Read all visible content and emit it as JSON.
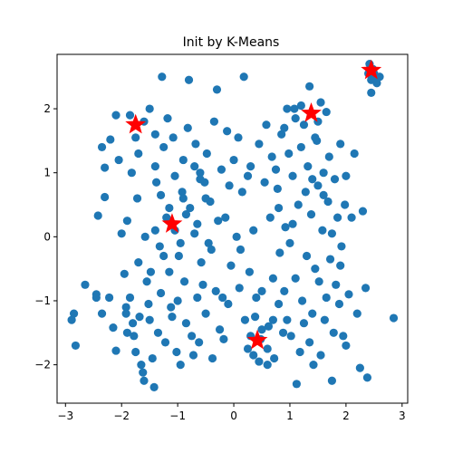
{
  "chart_data": {
    "type": "scatter",
    "title": "Init by K-Means",
    "xlabel": "",
    "ylabel": "",
    "xlim": [
      -3.15,
      3.1
    ],
    "ylim": [
      -2.6,
      2.85
    ],
    "xticks": [
      -3,
      -2,
      -1,
      0,
      1,
      2,
      3
    ],
    "yticks": [
      -2,
      -1,
      0,
      1,
      2
    ],
    "grid": false,
    "legend": "none",
    "point_color": "#1f77b4",
    "center_color": "#ff0000",
    "series": [
      {
        "marker": "circle",
        "color": "#1f77b4",
        "points": [
          [
            -2.89,
            -1.3
          ],
          [
            -2.85,
            -1.2
          ],
          [
            -2.82,
            -1.7
          ],
          [
            -2.65,
            -0.75
          ],
          [
            -2.45,
            -0.9
          ],
          [
            -2.45,
            -0.95
          ],
          [
            -2.42,
            0.33
          ],
          [
            -2.3,
            0.62
          ],
          [
            -2.3,
            1.08
          ],
          [
            -2.35,
            1.4
          ],
          [
            -2.35,
            -1.2
          ],
          [
            -2.22,
            -0.95
          ],
          [
            -2.2,
            1.52
          ],
          [
            -2.15,
            -1.42
          ],
          [
            -2.1,
            -1.78
          ],
          [
            -2.1,
            1.9
          ],
          [
            -2.05,
            1.2
          ],
          [
            -2.0,
            0.05
          ],
          [
            -1.95,
            -0.58
          ],
          [
            -1.92,
            -1.1
          ],
          [
            -1.92,
            -1.2
          ],
          [
            -1.9,
            0.25
          ],
          [
            -1.9,
            -1.5
          ],
          [
            -1.85,
            -0.95
          ],
          [
            -1.82,
            1.0
          ],
          [
            -1.8,
            -1.35
          ],
          [
            -1.78,
            -1.55
          ],
          [
            -1.75,
            -1.8
          ],
          [
            -1.72,
            0.6
          ],
          [
            -1.7,
            -0.4
          ],
          [
            -1.68,
            -1.25
          ],
          [
            -1.65,
            -2.0
          ],
          [
            -1.62,
            -2.12
          ],
          [
            -1.6,
            -2.25
          ],
          [
            -1.58,
            0.0
          ],
          [
            -1.55,
            -0.7
          ],
          [
            -1.52,
            -1.05
          ],
          [
            -1.5,
            -1.3
          ],
          [
            -1.48,
            -0.55
          ],
          [
            -1.45,
            -1.9
          ],
          [
            -1.42,
            -2.35
          ],
          [
            -1.4,
            1.1
          ],
          [
            -1.38,
            0.85
          ],
          [
            -1.35,
            -1.5
          ],
          [
            -1.32,
            -0.15
          ],
          [
            -1.3,
            -0.88
          ],
          [
            -1.28,
            2.5
          ],
          [
            -1.25,
            1.4
          ],
          [
            -1.22,
            -1.65
          ],
          [
            -1.2,
            0.3
          ],
          [
            -1.18,
            1.85
          ],
          [
            -1.15,
            -0.55
          ],
          [
            -1.12,
            -1.1
          ],
          [
            -1.1,
            -1.25
          ],
          [
            -1.08,
            1.55
          ],
          [
            -1.05,
            0.95
          ],
          [
            -1.02,
            -1.8
          ],
          [
            -1.0,
            -1.0
          ],
          [
            -0.98,
            -0.3
          ],
          [
            -0.95,
            -2.0
          ],
          [
            -0.92,
            0.7
          ],
          [
            -0.9,
            1.2
          ],
          [
            -0.88,
            -0.7
          ],
          [
            -0.85,
            -1.35
          ],
          [
            -0.82,
            1.7
          ],
          [
            -0.8,
            2.45
          ],
          [
            -0.78,
            0.45
          ],
          [
            -0.75,
            -1.55
          ],
          [
            -0.72,
            -1.85
          ],
          [
            -0.7,
            0.05
          ],
          [
            -0.68,
            1.45
          ],
          [
            -0.65,
            -0.95
          ],
          [
            -0.62,
            -1.65
          ],
          [
            -0.6,
            1.0
          ],
          [
            -0.58,
            -0.4
          ],
          [
            -0.55,
            -0.75
          ],
          [
            -0.52,
            0.85
          ],
          [
            -0.5,
            -1.2
          ],
          [
            -0.48,
            1.3
          ],
          [
            -0.45,
            -0.1
          ],
          [
            -0.42,
            0.55
          ],
          [
            -0.4,
            -0.2
          ],
          [
            -0.38,
            -1.9
          ],
          [
            -0.35,
            1.8
          ],
          [
            -0.32,
            -0.85
          ],
          [
            -0.3,
            2.3
          ],
          [
            -0.28,
            0.25
          ],
          [
            -0.25,
            -1.45
          ],
          [
            -0.22,
            1.05
          ],
          [
            -0.2,
            -0.95
          ],
          [
            -0.18,
            -1.6
          ],
          [
            -0.15,
            0.3
          ],
          [
            -0.12,
            1.65
          ],
          [
            -0.1,
            -1.05
          ],
          [
            -0.08,
            0.8
          ],
          [
            -0.05,
            -0.45
          ],
          [
            0.0,
            1.2
          ],
          [
            0.05,
            0.0
          ],
          [
            0.08,
            1.55
          ],
          [
            0.1,
            -0.8
          ],
          [
            0.12,
            -0.2
          ],
          [
            0.15,
            0.7
          ],
          [
            0.18,
            2.5
          ],
          [
            0.2,
            -1.3
          ],
          [
            0.25,
            0.95
          ],
          [
            0.28,
            -0.55
          ],
          [
            0.3,
            1.1
          ],
          [
            0.35,
            0.1
          ],
          [
            0.38,
            -1.25
          ],
          [
            0.4,
            -0.95
          ],
          [
            0.45,
            1.45
          ],
          [
            0.48,
            -1.6
          ],
          [
            0.5,
            -0.85
          ],
          [
            0.55,
            0.85
          ],
          [
            0.58,
            1.75
          ],
          [
            0.6,
            -1.75
          ],
          [
            0.62,
            -1.4
          ],
          [
            0.65,
            0.3
          ],
          [
            0.68,
            1.25
          ],
          [
            0.7,
            -0.65
          ],
          [
            0.72,
            -1.9
          ],
          [
            0.75,
            1.05
          ],
          [
            0.78,
            0.75
          ],
          [
            0.8,
            -1.05
          ],
          [
            0.82,
            -0.25
          ],
          [
            0.85,
            1.6
          ],
          [
            0.88,
            -1.5
          ],
          [
            0.9,
            -0.85
          ],
          [
            0.92,
            0.15
          ],
          [
            0.95,
            -1.3
          ],
          [
            0.98,
            1.3
          ],
          [
            1.0,
            -0.1
          ],
          [
            1.02,
            -1.55
          ],
          [
            1.05,
            0.95
          ],
          [
            1.08,
            2.0
          ],
          [
            1.1,
            -0.65
          ],
          [
            1.12,
            -2.3
          ],
          [
            1.15,
            0.5
          ],
          [
            1.18,
            -1.8
          ],
          [
            1.2,
            1.4
          ],
          [
            1.22,
            -1.0
          ],
          [
            1.25,
            -1.35
          ],
          [
            1.28,
            0.7
          ],
          [
            1.3,
            -0.3
          ],
          [
            1.32,
            1.1
          ],
          [
            1.35,
            -1.65
          ],
          [
            1.38,
            0.35
          ],
          [
            1.4,
            -1.2
          ],
          [
            1.42,
            -2.0
          ],
          [
            1.45,
            -0.5
          ],
          [
            1.48,
            1.5
          ],
          [
            1.5,
            0.8
          ],
          [
            1.52,
            -0.7
          ],
          [
            1.55,
            -1.85
          ],
          [
            1.58,
            0.1
          ],
          [
            1.6,
            1.0
          ],
          [
            1.62,
            -1.3
          ],
          [
            1.65,
            -0.95
          ],
          [
            1.68,
            0.55
          ],
          [
            1.7,
            1.25
          ],
          [
            1.72,
            -0.35
          ],
          [
            1.75,
            -2.25
          ],
          [
            1.78,
            -1.5
          ],
          [
            1.8,
            0.9
          ],
          [
            1.82,
            -0.75
          ],
          [
            1.85,
            0.3
          ],
          [
            1.88,
            -1.05
          ],
          [
            1.9,
            1.45
          ],
          [
            1.92,
            -0.15
          ],
          [
            1.95,
            -1.55
          ],
          [
            1.98,
            0.5
          ],
          [
            2.0,
            -1.7
          ],
          [
            2.05,
            -0.9
          ],
          [
            2.1,
            0.3
          ],
          [
            2.15,
            1.3
          ],
          [
            2.2,
            -1.2
          ],
          [
            2.25,
            -2.05
          ],
          [
            2.3,
            0.4
          ],
          [
            2.35,
            -0.8
          ],
          [
            2.38,
            -2.2
          ],
          [
            2.42,
            2.7
          ],
          [
            2.45,
            2.45
          ],
          [
            2.5,
            2.55
          ],
          [
            2.55,
            2.4
          ],
          [
            2.6,
            2.5
          ],
          [
            2.4,
            2.55
          ],
          [
            2.48,
            2.62
          ],
          [
            2.52,
            2.48
          ],
          [
            2.45,
            2.25
          ],
          [
            2.85,
            -1.27
          ],
          [
            -1.75,
            1.55
          ],
          [
            -1.6,
            1.8
          ],
          [
            -1.5,
            2.0
          ],
          [
            -1.85,
            1.9
          ],
          [
            -1.7,
            1.3
          ],
          [
            -1.4,
            1.6
          ],
          [
            -1.3,
            0.65
          ],
          [
            -1.15,
            0.45
          ],
          [
            -1.05,
            0.1
          ],
          [
            -0.95,
            -0.1
          ],
          [
            -1.25,
            -0.3
          ],
          [
            -1.4,
            0.1
          ],
          [
            -0.85,
            0.35
          ],
          [
            1.2,
            2.05
          ],
          [
            1.35,
            2.35
          ],
          [
            1.5,
            1.8
          ],
          [
            1.55,
            2.1
          ],
          [
            1.25,
            1.75
          ],
          [
            1.45,
            1.55
          ],
          [
            1.1,
            1.85
          ],
          [
            1.65,
            1.95
          ],
          [
            0.9,
            1.7
          ],
          [
            0.95,
            2.0
          ],
          [
            0.35,
            -1.85
          ],
          [
            0.5,
            -1.45
          ],
          [
            0.3,
            -1.55
          ],
          [
            0.6,
            -2.0
          ],
          [
            0.45,
            -1.95
          ],
          [
            0.7,
            -1.3
          ],
          [
            0.25,
            -1.75
          ],
          [
            -0.7,
            1.1
          ],
          [
            -0.6,
            0.9
          ],
          [
            -0.9,
            0.6
          ],
          [
            -0.5,
            0.6
          ],
          [
            -0.65,
            0.2
          ],
          [
            1.4,
            0.9
          ],
          [
            1.6,
            0.65
          ],
          [
            1.75,
            0.05
          ],
          [
            1.9,
            -0.45
          ],
          [
            2.0,
            0.95
          ],
          [
            1.05,
            0.2
          ],
          [
            0.8,
            0.45
          ]
        ]
      }
    ],
    "centers": {
      "marker": "star",
      "color": "#ff0000",
      "points": [
        [
          -1.75,
          1.75
        ],
        [
          1.38,
          1.93
        ],
        [
          2.45,
          2.6
        ],
        [
          -1.1,
          0.2
        ],
        [
          0.42,
          -1.62
        ]
      ]
    }
  }
}
